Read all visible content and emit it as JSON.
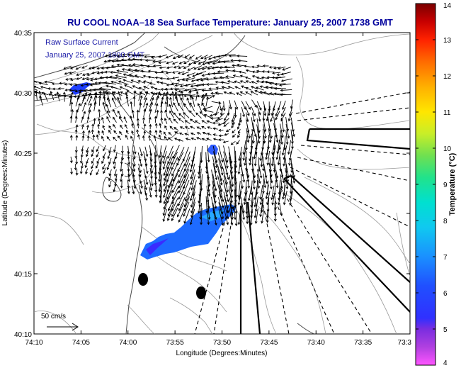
{
  "chart_data": {
    "type": "vector-field map",
    "title": "RU COOL  NOAA–18  Sea Surface Temperature:  January 25, 2007 1738 GMT",
    "overlay_label": "Raw Surface Current",
    "overlay_time": "January 25, 2007 1800 GMT",
    "xlabel": "Longitude (Degrees:Minutes)",
    "ylabel": "Latitude (Degrees:Minutes)",
    "x_ticks": [
      "74:10",
      "74:05",
      "74:00",
      "73:55",
      "73:50",
      "73:45",
      "73:40",
      "73:35",
      "73:3"
    ],
    "y_ticks": [
      "40:35",
      "40:30",
      "40:25",
      "40:20",
      "40:15",
      "40:10"
    ],
    "xlim_minutes_west": [
      4450,
      4410
    ],
    "ylim_minutes_north": [
      2410,
      2435
    ],
    "scale_label": "50 cm/s",
    "colorbar": {
      "label": "Temperature (°C)",
      "min": 4,
      "max": 14,
      "ticks": [
        "14",
        "13",
        "12",
        "11",
        "10",
        "9",
        "8",
        "7",
        "6",
        "5",
        "4"
      ],
      "colormap": [
        "#ff66ff",
        "#9a4fd0",
        "#3030ff",
        "#2060ff",
        "#1aa0ff",
        "#00e0e0",
        "#22e29a",
        "#7be052",
        "#d0ee28",
        "#ffe000",
        "#ff9000",
        "#ff2000",
        "#c00000",
        "#800000"
      ]
    },
    "sst_patches_degC": [
      {
        "name": "upper-left patch",
        "temp": 5.3
      },
      {
        "name": "center small patch",
        "temp": 5.4
      },
      {
        "name": "south band patch",
        "temp": 6.0
      }
    ],
    "current_field": "radar-derived surface current vectors, strongest in Lower Bay / Raritan Bay mouth"
  }
}
